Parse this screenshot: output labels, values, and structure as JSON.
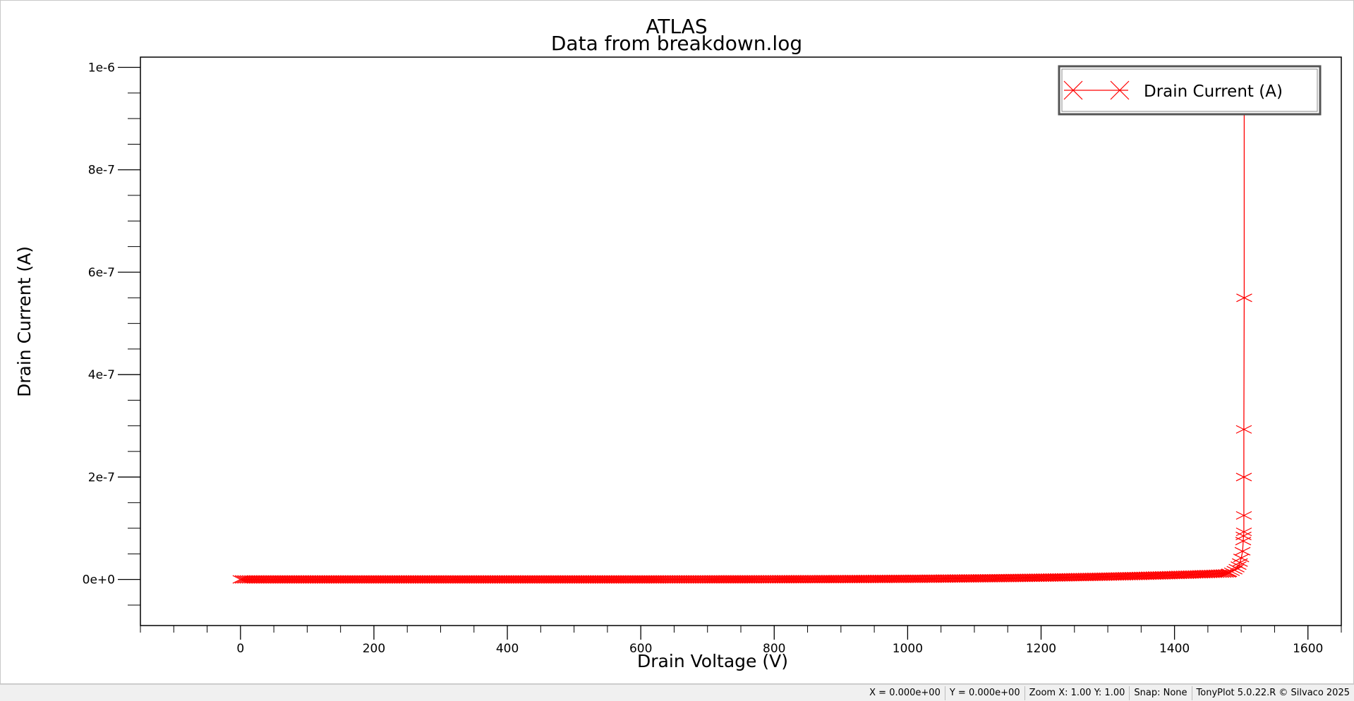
{
  "chart_data": {
    "type": "line",
    "title": "ATLAS",
    "subtitle": "Data from breakdown.log",
    "xlabel": "Drain Voltage (V)",
    "ylabel": "Drain Current (A)",
    "xlim": [
      -150,
      1650
    ],
    "ylim": [
      -9e-08,
      1.02e-06
    ],
    "x_ticks": [
      0,
      200,
      400,
      600,
      800,
      1000,
      1200,
      1400,
      1600
    ],
    "x_tick_labels": [
      "0",
      "200",
      "400",
      "600",
      "800",
      "1000",
      "1200",
      "1400",
      "1600"
    ],
    "y_ticks": [
      0,
      2e-07,
      4e-07,
      6e-07,
      8e-07,
      1e-06
    ],
    "y_tick_labels": [
      "0e+0",
      "2e-7",
      "4e-7",
      "6e-7",
      "8e-7",
      "1e-6"
    ],
    "grid": false,
    "legend_position": "top-right",
    "series": [
      {
        "name": "Drain Current (A)",
        "color": "#ff0000",
        "marker": "x",
        "sweep": {
          "start": 0,
          "end": 1480,
          "step": 3.5,
          "current_at_start": 1e-10,
          "current_at_end": 1.2e-08
        },
        "points": [
          [
            1482,
            1.3e-08
          ],
          [
            1486,
            1.5e-08
          ],
          [
            1490,
            1.8e-08
          ],
          [
            1493,
            2.2e-08
          ],
          [
            1496,
            2.7e-08
          ],
          [
            1498,
            3.3e-08
          ],
          [
            1500,
            4.2e-08
          ],
          [
            1502,
            5.5e-08
          ],
          [
            1503,
            7.5e-08
          ],
          [
            1503.5,
            8.5e-08
          ],
          [
            1504,
            9.3e-08
          ],
          [
            1504,
            1.25e-07
          ],
          [
            1504,
            2e-07
          ],
          [
            1504,
            2.93e-07
          ],
          [
            1504.5,
            5.5e-07
          ],
          [
            1504.5,
            9.2e-07
          ]
        ]
      }
    ]
  },
  "status_bar": {
    "x_readout": "X = 0.000e+00",
    "y_readout": "Y = 0.000e+00",
    "zoom": "Zoom X: 1.00 Y: 1.00",
    "snap": "Snap: None",
    "product": "TonyPlot 5.0.22.R © Silvaco 2025"
  }
}
